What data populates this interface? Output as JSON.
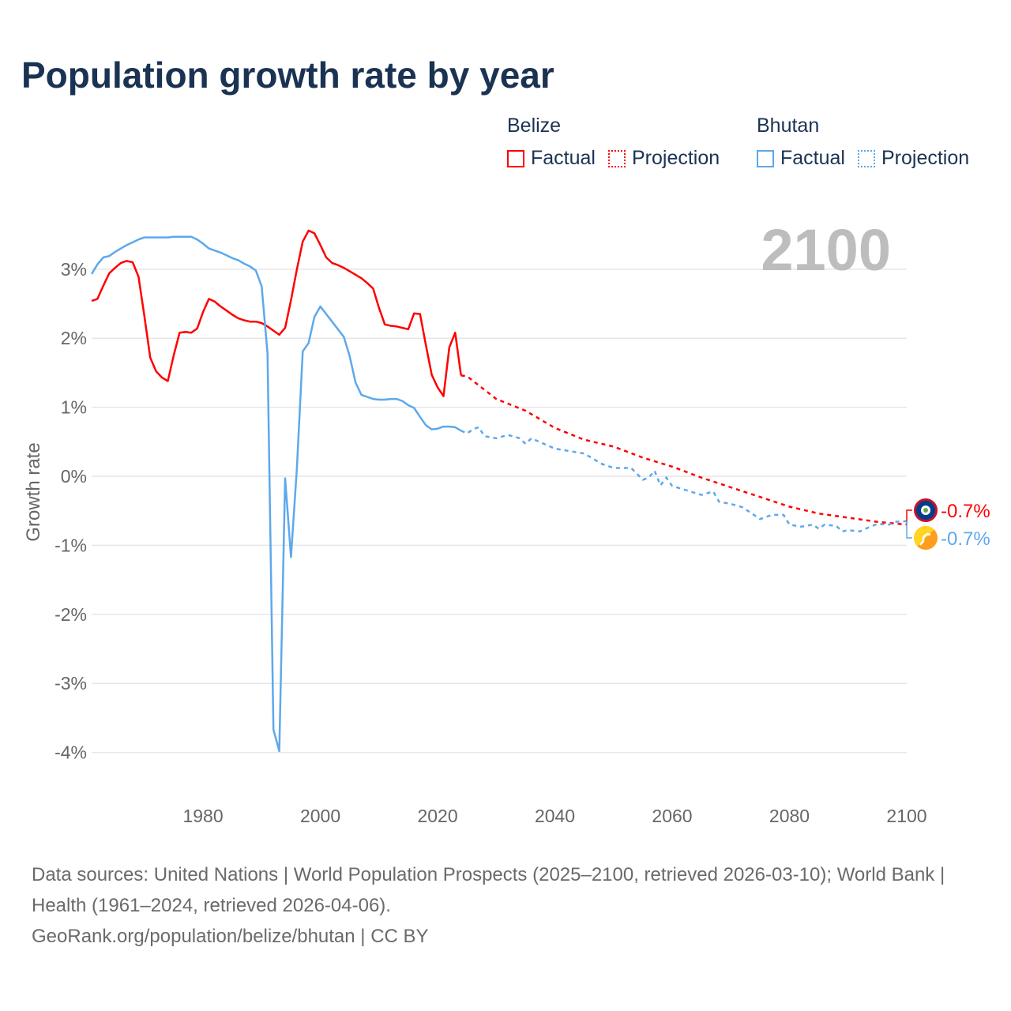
{
  "chart_data": {
    "type": "line",
    "title": "Population growth rate by year",
    "ylabel": "Growth rate",
    "xlabel": "",
    "xlim": [
      1961,
      2100
    ],
    "ylim": [
      -4.5,
      3.8
    ],
    "x_ticks": [
      1980,
      2000,
      2020,
      2040,
      2060,
      2080,
      2100
    ],
    "y_ticks": [
      3,
      2,
      1,
      0,
      -1,
      -2,
      -3,
      -4
    ],
    "y_tick_labels": [
      "3%",
      "2%",
      "1%",
      "0%",
      "-1%",
      "-2%",
      "-3%",
      "-4%"
    ],
    "grid": true,
    "current_year_label": "2100",
    "legend": {
      "placement": "top-right",
      "groups": [
        {
          "name": "Belize",
          "items": [
            "Factual",
            "Projection"
          ]
        },
        {
          "name": "Bhutan",
          "items": [
            "Factual",
            "Projection"
          ]
        }
      ]
    },
    "series": [
      {
        "name": "Belize",
        "color": "#ff0000",
        "end_label": "-0.7%",
        "factual": [
          [
            1961,
            2.54
          ],
          [
            1962,
            2.57
          ],
          [
            1963,
            2.76
          ],
          [
            1964,
            2.94
          ],
          [
            1965,
            3.02
          ],
          [
            1966,
            3.09
          ],
          [
            1967,
            3.12
          ],
          [
            1968,
            3.1
          ],
          [
            1969,
            2.89
          ],
          [
            1970,
            2.32
          ],
          [
            1971,
            1.72
          ],
          [
            1972,
            1.52
          ],
          [
            1973,
            1.43
          ],
          [
            1974,
            1.38
          ],
          [
            1975,
            1.75
          ],
          [
            1976,
            2.08
          ],
          [
            1977,
            2.09
          ],
          [
            1978,
            2.08
          ],
          [
            1979,
            2.14
          ],
          [
            1980,
            2.38
          ],
          [
            1981,
            2.57
          ],
          [
            1982,
            2.53
          ],
          [
            1983,
            2.46
          ],
          [
            1984,
            2.4
          ],
          [
            1985,
            2.34
          ],
          [
            1986,
            2.29
          ],
          [
            1987,
            2.26
          ],
          [
            1988,
            2.24
          ],
          [
            1989,
            2.24
          ],
          [
            1990,
            2.22
          ],
          [
            1991,
            2.17
          ],
          [
            1992,
            2.11
          ],
          [
            1993,
            2.05
          ],
          [
            1994,
            2.15
          ],
          [
            1995,
            2.55
          ],
          [
            1996,
            3.0
          ],
          [
            1997,
            3.4
          ],
          [
            1998,
            3.56
          ],
          [
            1999,
            3.52
          ],
          [
            2000,
            3.35
          ],
          [
            2001,
            3.17
          ],
          [
            2002,
            3.09
          ],
          [
            2003,
            3.06
          ],
          [
            2004,
            3.02
          ],
          [
            2005,
            2.97
          ],
          [
            2006,
            2.92
          ],
          [
            2007,
            2.87
          ],
          [
            2008,
            2.8
          ],
          [
            2009,
            2.72
          ],
          [
            2010,
            2.44
          ],
          [
            2011,
            2.2
          ],
          [
            2012,
            2.18
          ],
          [
            2013,
            2.17
          ],
          [
            2014,
            2.15
          ],
          [
            2015,
            2.13
          ],
          [
            2016,
            2.36
          ],
          [
            2017,
            2.35
          ],
          [
            2018,
            1.9
          ],
          [
            2019,
            1.47
          ],
          [
            2020,
            1.29
          ],
          [
            2021,
            1.16
          ],
          [
            2022,
            1.87
          ],
          [
            2023,
            2.08
          ],
          [
            2024,
            1.46
          ]
        ],
        "projection": [
          [
            2024,
            1.46
          ],
          [
            2025,
            1.45
          ],
          [
            2030,
            1.12
          ],
          [
            2035,
            0.95
          ],
          [
            2040,
            0.7
          ],
          [
            2045,
            0.53
          ],
          [
            2050,
            0.43
          ],
          [
            2055,
            0.27
          ],
          [
            2060,
            0.14
          ],
          [
            2065,
            -0.02
          ],
          [
            2070,
            -0.16
          ],
          [
            2075,
            -0.3
          ],
          [
            2080,
            -0.44
          ],
          [
            2085,
            -0.54
          ],
          [
            2090,
            -0.6
          ],
          [
            2095,
            -0.66
          ],
          [
            2100,
            -0.7
          ]
        ]
      },
      {
        "name": "Bhutan",
        "color": "#5ea8ec",
        "end_label": "-0.7%",
        "factual": [
          [
            1961,
            2.93
          ],
          [
            1962,
            3.07
          ],
          [
            1963,
            3.17
          ],
          [
            1964,
            3.19
          ],
          [
            1965,
            3.25
          ],
          [
            1966,
            3.3
          ],
          [
            1967,
            3.35
          ],
          [
            1968,
            3.39
          ],
          [
            1969,
            3.43
          ],
          [
            1970,
            3.46
          ],
          [
            1971,
            3.46
          ],
          [
            1972,
            3.46
          ],
          [
            1973,
            3.46
          ],
          [
            1974,
            3.46
          ],
          [
            1975,
            3.47
          ],
          [
            1976,
            3.47
          ],
          [
            1977,
            3.47
          ],
          [
            1978,
            3.47
          ],
          [
            1979,
            3.43
          ],
          [
            1980,
            3.37
          ],
          [
            1981,
            3.3
          ],
          [
            1982,
            3.27
          ],
          [
            1983,
            3.24
          ],
          [
            1984,
            3.2
          ],
          [
            1985,
            3.16
          ],
          [
            1986,
            3.13
          ],
          [
            1987,
            3.08
          ],
          [
            1988,
            3.04
          ],
          [
            1989,
            2.98
          ],
          [
            1990,
            2.75
          ],
          [
            1991,
            1.78
          ],
          [
            1992,
            -3.67
          ],
          [
            1993,
            -3.98
          ],
          [
            1994,
            -0.03
          ],
          [
            1995,
            -1.17
          ],
          [
            1996,
            0.12
          ],
          [
            1997,
            1.81
          ],
          [
            1998,
            1.93
          ],
          [
            1999,
            2.31
          ],
          [
            2000,
            2.46
          ],
          [
            2001,
            2.35
          ],
          [
            2002,
            2.24
          ],
          [
            2003,
            2.13
          ],
          [
            2004,
            2.02
          ],
          [
            2005,
            1.74
          ],
          [
            2006,
            1.36
          ],
          [
            2007,
            1.18
          ],
          [
            2008,
            1.15
          ],
          [
            2009,
            1.12
          ],
          [
            2010,
            1.11
          ],
          [
            2011,
            1.11
          ],
          [
            2012,
            1.12
          ],
          [
            2013,
            1.12
          ],
          [
            2014,
            1.09
          ],
          [
            2015,
            1.03
          ],
          [
            2016,
            0.99
          ],
          [
            2017,
            0.86
          ],
          [
            2018,
            0.74
          ],
          [
            2019,
            0.68
          ],
          [
            2020,
            0.69
          ],
          [
            2021,
            0.72
          ],
          [
            2022,
            0.72
          ],
          [
            2023,
            0.71
          ],
          [
            2024,
            0.66
          ]
        ],
        "projection": [
          [
            2024,
            0.66
          ],
          [
            2025,
            0.62
          ],
          [
            2026,
            0.68
          ],
          [
            2027,
            0.71
          ],
          [
            2028,
            0.58
          ],
          [
            2030,
            0.55
          ],
          [
            2032,
            0.6
          ],
          [
            2034,
            0.55
          ],
          [
            2035,
            0.47
          ],
          [
            2036,
            0.55
          ],
          [
            2040,
            0.4
          ],
          [
            2045,
            0.33
          ],
          [
            2048,
            0.18
          ],
          [
            2050,
            0.12
          ],
          [
            2053,
            0.12
          ],
          [
            2055,
            -0.05
          ],
          [
            2056,
            -0.02
          ],
          [
            2057,
            0.08
          ],
          [
            2058,
            -0.13
          ],
          [
            2059,
            -0.02
          ],
          [
            2060,
            -0.14
          ],
          [
            2065,
            -0.27
          ],
          [
            2067,
            -0.22
          ],
          [
            2068,
            -0.37
          ],
          [
            2070,
            -0.4
          ],
          [
            2072,
            -0.45
          ],
          [
            2075,
            -0.62
          ],
          [
            2077,
            -0.56
          ],
          [
            2079,
            -0.56
          ],
          [
            2080,
            -0.7
          ],
          [
            2082,
            -0.73
          ],
          [
            2084,
            -0.7
          ],
          [
            2085,
            -0.76
          ],
          [
            2086,
            -0.7
          ],
          [
            2088,
            -0.72
          ],
          [
            2089,
            -0.8
          ],
          [
            2090,
            -0.78
          ],
          [
            2092,
            -0.8
          ],
          [
            2093,
            -0.76
          ],
          [
            2095,
            -0.69
          ],
          [
            2097,
            -0.7
          ],
          [
            2098,
            -0.66
          ],
          [
            2100,
            -0.65
          ]
        ]
      }
    ]
  },
  "footer": {
    "sources": "Data sources: United Nations | World Population Prospects (2025–2100, retrieved 2026-03-10); World Bank | Health (1961–2024, retrieved 2026-04-06).",
    "credit": "GeoRank.org/population/belize/bhutan | CC BY"
  }
}
